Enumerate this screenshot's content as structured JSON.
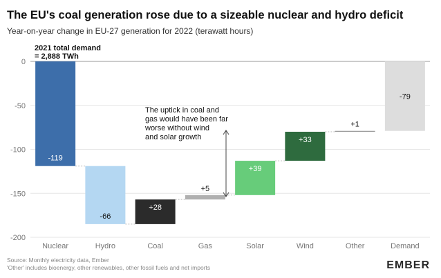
{
  "chart_data": {
    "type": "bar",
    "title": "The EU's coal generation rose due to a sizeable nuclear and hydro deficit",
    "subtitle": "Year-on-year change in EU-27 generation for 2022 (terawatt hours)",
    "categories": [
      "Nuclear",
      "Hydro",
      "Coal",
      "Gas",
      "Solar",
      "Wind",
      "Other",
      "Demand"
    ],
    "values": [
      -119,
      -66,
      28,
      5,
      39,
      33,
      1,
      -79
    ],
    "bar_ranges": [
      [
        0,
        -119
      ],
      [
        -119,
        -185
      ],
      [
        -185,
        -157
      ],
      [
        -157,
        -152
      ],
      [
        -152,
        -113
      ],
      [
        -113,
        -80
      ],
      [
        -80,
        -79
      ],
      [
        0,
        -79
      ]
    ],
    "value_labels": [
      "-119",
      "-66",
      "+28",
      "+5",
      "+39",
      "+33",
      "+1",
      "-79"
    ],
    "colors": [
      "#3d6eaa",
      "#b4d7f2",
      "#2b2b2b",
      "#b0b0b0",
      "#67cc7a",
      "#2e6b3e",
      "#9a9a9a",
      "#dddddd"
    ],
    "y_ticks": [
      0,
      -50,
      -100,
      -150,
      -200
    ],
    "y_tick_labels": [
      "0",
      "-50",
      "-100",
      "-150",
      "-200"
    ],
    "ylim": [
      -200,
      0
    ],
    "grid": true,
    "annotations": {
      "demand_label": [
        "2021 total demand",
        "= 2,888 TWh"
      ],
      "uptick_note": [
        "The uptick in coal and",
        "gas would have been far",
        "worse without wind",
        "and solar growth"
      ]
    },
    "source": "Source: Monthly electricity data, Ember",
    "footnote": "'Other' includes bioenergy, other renewables, other fossil fuels and net imports",
    "logo": "EMBER"
  }
}
